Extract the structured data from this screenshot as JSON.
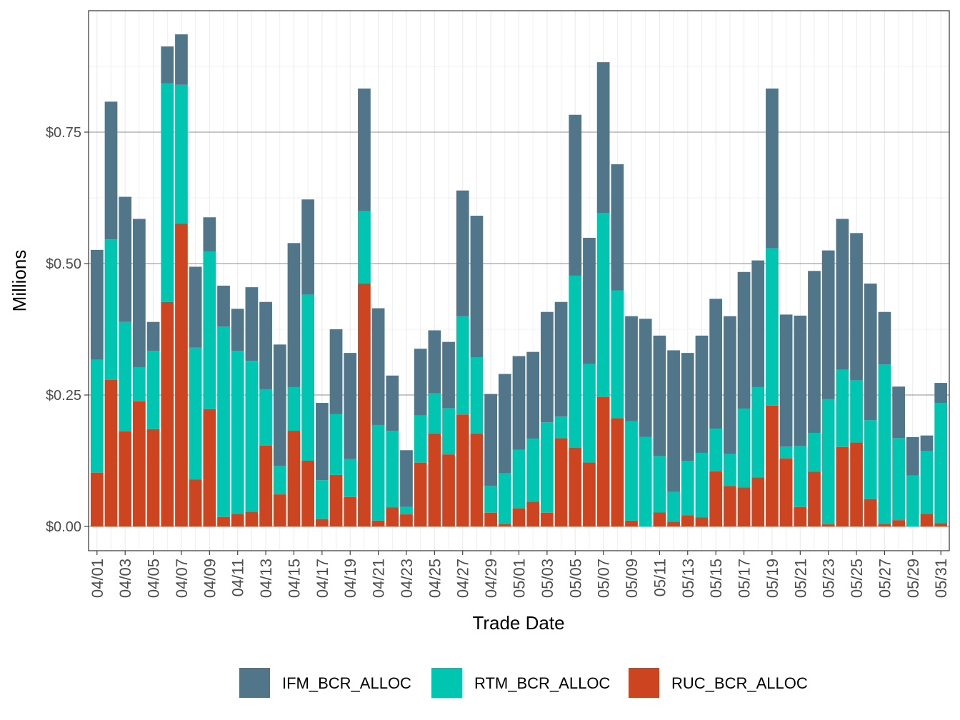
{
  "chart_data": {
    "type": "bar",
    "stacked": true,
    "xlabel": "Trade Date",
    "ylabel": "Millions",
    "ylim": [
      -0.045,
      0.965
    ],
    "y_ticks": [
      0,
      0.25,
      0.5,
      0.75
    ],
    "y_tick_labels": [
      "$0.00",
      "$0.25",
      "$0.50",
      "$0.75"
    ],
    "grid": true,
    "legend_position": "bottom",
    "categories": [
      "04/01",
      "04/02",
      "04/03",
      "04/04",
      "04/05",
      "04/06",
      "04/07",
      "04/08",
      "04/09",
      "04/10",
      "04/11",
      "04/12",
      "04/13",
      "04/14",
      "04/15",
      "04/16",
      "04/17",
      "04/18",
      "04/19",
      "04/20",
      "04/21",
      "04/22",
      "04/23",
      "04/24",
      "04/25",
      "04/26",
      "04/27",
      "04/28",
      "04/29",
      "04/30",
      "05/01",
      "05/02",
      "05/03",
      "05/04",
      "05/05",
      "05/06",
      "05/07",
      "05/08",
      "05/09",
      "05/10",
      "05/11",
      "05/12",
      "05/13",
      "05/14",
      "05/15",
      "05/16",
      "05/17",
      "05/18",
      "05/19",
      "05/20",
      "05/21",
      "05/22",
      "05/23",
      "05/24",
      "05/25",
      "05/26",
      "05/27",
      "05/28",
      "05/29",
      "05/30",
      "05/31"
    ],
    "x_tick_labels": [
      "04/01",
      "04/03",
      "04/05",
      "04/07",
      "04/09",
      "04/11",
      "04/13",
      "04/15",
      "04/17",
      "04/19",
      "04/21",
      "04/23",
      "04/25",
      "04/27",
      "04/29",
      "05/01",
      "05/03",
      "05/05",
      "05/07",
      "05/09",
      "05/11",
      "05/13",
      "05/15",
      "05/17",
      "05/19",
      "05/21",
      "05/23",
      "05/25",
      "05/27",
      "05/29",
      "05/31"
    ],
    "series": [
      {
        "name": "RUC_BCR_ALLOC",
        "color": "#cd4520",
        "values": [
          0.102,
          0.279,
          0.181,
          0.238,
          0.185,
          0.427,
          0.576,
          0.089,
          0.223,
          0.018,
          0.024,
          0.028,
          0.154,
          0.061,
          0.182,
          0.125,
          0.014,
          0.098,
          0.056,
          0.462,
          0.011,
          0.036,
          0.023,
          0.121,
          0.177,
          0.137,
          0.213,
          0.177,
          0.026,
          0.005,
          0.034,
          0.047,
          0.026,
          0.168,
          0.15,
          0.122,
          0.246,
          0.206,
          0.011,
          0.0,
          0.027,
          0.009,
          0.021,
          0.017,
          0.105,
          0.077,
          0.074,
          0.093,
          0.23,
          0.129,
          0.037,
          0.104,
          0.004,
          0.151,
          0.16,
          0.052,
          0.005,
          0.012,
          0.0,
          0.024,
          0.006
        ]
      },
      {
        "name": "RTM_BCR_ALLOC",
        "color": "#00c5b1",
        "values": [
          0.215,
          0.267,
          0.208,
          0.065,
          0.149,
          0.416,
          0.264,
          0.251,
          0.3,
          0.362,
          0.31,
          0.287,
          0.107,
          0.054,
          0.083,
          0.316,
          0.074,
          0.116,
          0.072,
          0.138,
          0.182,
          0.146,
          0.014,
          0.09,
          0.076,
          0.088,
          0.187,
          0.145,
          0.051,
          0.096,
          0.112,
          0.12,
          0.172,
          0.041,
          0.327,
          0.187,
          0.35,
          0.243,
          0.189,
          0.17,
          0.107,
          0.057,
          0.104,
          0.123,
          0.081,
          0.061,
          0.15,
          0.172,
          0.299,
          0.023,
          0.116,
          0.074,
          0.238,
          0.147,
          0.118,
          0.15,
          0.303,
          0.156,
          0.097,
          0.12,
          0.229
        ]
      },
      {
        "name": "IFM_BCR_ALLOC",
        "color": "#517689",
        "values": [
          0.209,
          0.262,
          0.238,
          0.282,
          0.055,
          0.07,
          0.096,
          0.154,
          0.065,
          0.078,
          0.08,
          0.14,
          0.166,
          0.231,
          0.274,
          0.181,
          0.147,
          0.161,
          0.202,
          0.233,
          0.222,
          0.105,
          0.108,
          0.127,
          0.12,
          0.126,
          0.239,
          0.269,
          0.175,
          0.189,
          0.178,
          0.165,
          0.21,
          0.218,
          0.306,
          0.24,
          0.287,
          0.24,
          0.2,
          0.225,
          0.229,
          0.269,
          0.205,
          0.223,
          0.247,
          0.262,
          0.26,
          0.241,
          0.304,
          0.251,
          0.248,
          0.308,
          0.283,
          0.287,
          0.28,
          0.26,
          0.1,
          0.098,
          0.073,
          0.029,
          0.038
        ]
      }
    ],
    "legend_order": [
      "IFM_BCR_ALLOC",
      "RTM_BCR_ALLOC",
      "RUC_BCR_ALLOC"
    ]
  }
}
